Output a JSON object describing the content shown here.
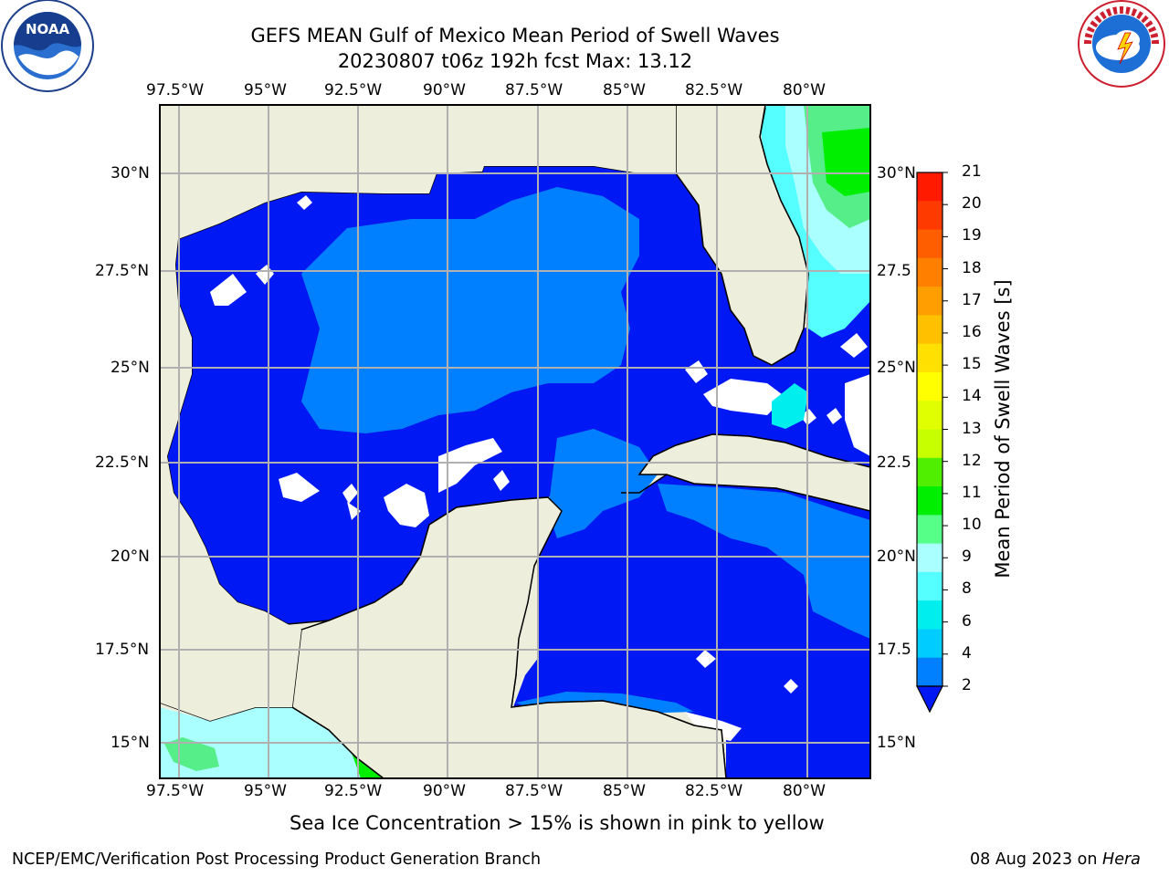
{
  "title": {
    "line1": "GEFS MEAN Gulf of Mexico Mean Period of Swell Waves",
    "line2": "20230807 t06z 192h fcst   Max: 13.12"
  },
  "logos": {
    "noaa": {
      "label": "NOAA",
      "ring": "NATIONAL OCEANIC AND ATMOSPHERIC ADMINISTRATION · U.S. DEPARTMENT OF COMMERCE"
    },
    "nws": {
      "ring": "NATIONAL WEATHER SERVICE"
    }
  },
  "map": {
    "lon_ticks": [
      "97.5°W",
      "95°W",
      "92.5°W",
      "90°W",
      "87.5°W",
      "85°W",
      "82.5°W",
      "80°W"
    ],
    "lat_ticks_left": [
      "30°N",
      "27.5°N",
      "25°N",
      "22.5°N",
      "20°N",
      "17.5°N",
      "15°N"
    ],
    "lat_ticks_right": [
      "30°N",
      "27.5",
      "25°N",
      "22.5",
      "20°N",
      "17.5",
      "15°N"
    ],
    "colors": {
      "land": "#eeeedc",
      "ocean": "#0019f4",
      "grid": "#b0b0b0"
    }
  },
  "colorbar": {
    "label": "Mean Period of Swell Waves [s]",
    "ticks": [
      "21",
      "20",
      "19",
      "18",
      "17",
      "16",
      "15",
      "14",
      "13",
      "12",
      "11",
      "10",
      "9",
      "8",
      "6",
      "4",
      "2"
    ],
    "colors": [
      "#ff1a00",
      "#ff3a00",
      "#ff5e00",
      "#ff8000",
      "#ff9e00",
      "#ffc000",
      "#ffe000",
      "#ffff00",
      "#e0ff00",
      "#c8ff00",
      "#50ee00",
      "#00ee00",
      "#55ff88",
      "#aaffff",
      "#55ffff",
      "#00eeee",
      "#00ccff",
      "#0080ff"
    ]
  },
  "note": "Sea Ice Concentration > 15% is shown in pink to yellow",
  "footer": {
    "left": "NCEP/EMC/Verification Post Processing Product Generation Branch",
    "date": "08 Aug 2023 on ",
    "machine": "Hera"
  }
}
